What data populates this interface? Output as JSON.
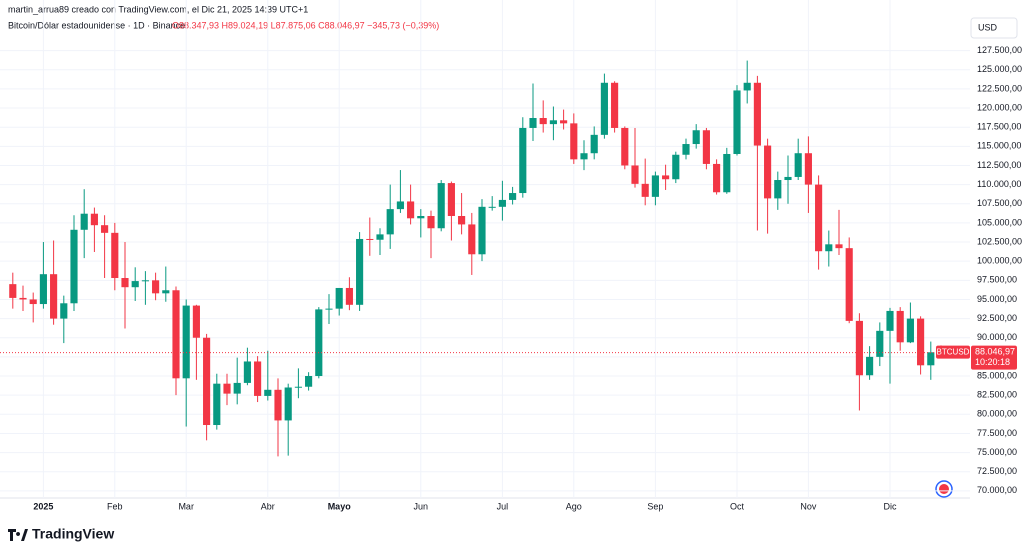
{
  "header": {
    "credit": "martin_arrua89 creado con TradingView.com, el Dic 21, 2025 14:39 UTC+1",
    "unit": "USD",
    "logo": "TradingView"
  },
  "chart_data": {
    "type": "candlestick",
    "title": "Bitcoin/Dólar estadounidense · 1D · Binance",
    "legend_ohlc": "O88.347,93 H89.024,19 L87.875,06 C88.046,97 −345,73 (−0,39%)",
    "categories": [
      null,
      null,
      null,
      "2025",
      null,
      null,
      null,
      null,
      null,
      null,
      "Feb",
      null,
      null,
      null,
      null,
      null,
      null,
      "Mar",
      null,
      null,
      null,
      null,
      null,
      null,
      null,
      "Abr",
      null,
      null,
      null,
      null,
      null,
      null,
      "Mayo",
      null,
      null,
      null,
      null,
      null,
      null,
      null,
      "Jun",
      null,
      null,
      null,
      null,
      null,
      null,
      null,
      "Jul",
      null,
      null,
      null,
      null,
      null,
      null,
      "Ago",
      null,
      null,
      null,
      null,
      null,
      null,
      null,
      "Sep",
      null,
      null,
      null,
      null,
      null,
      null,
      null,
      "Oct",
      null,
      null,
      null,
      null,
      null,
      null,
      "Nov",
      null,
      null,
      null,
      null,
      null,
      null,
      null,
      "Dic",
      null,
      null,
      null,
      null,
      null
    ],
    "open": [
      97000,
      95200,
      95000,
      94400,
      98300,
      92500,
      94500,
      104100,
      106200,
      104700,
      103700,
      97800,
      96600,
      97400,
      97500,
      95800,
      96200,
      84700,
      94200,
      90000,
      78600,
      84000,
      82700,
      84100,
      86900,
      82400,
      83200,
      79200,
      83500,
      83600,
      85000,
      93700,
      93800,
      96500,
      94300,
      102900,
      102800,
      103500,
      106800,
      107800,
      105600,
      105900,
      104300,
      110200,
      105900,
      104800,
      100900,
      107100,
      107100,
      108000,
      108900,
      117400,
      118700,
      117900,
      118400,
      118000,
      113300,
      114100,
      116500,
      123300,
      117400,
      112500,
      110100,
      108400,
      111200,
      110700,
      113900,
      115300,
      117100,
      112700,
      109000,
      114000,
      122300,
      123300,
      115100,
      108200,
      110600,
      111000,
      114100,
      110000,
      101300,
      102200,
      101700,
      92200,
      85100,
      87500,
      90900,
      93500,
      89400,
      92500,
      86400,
      88100
    ],
    "high": [
      98500,
      96800,
      95900,
      102500,
      102700,
      95500,
      106000,
      109400,
      107000,
      106000,
      105000,
      102500,
      99200,
      98700,
      98500,
      99300,
      96700,
      95000,
      94300,
      90500,
      85300,
      85300,
      87400,
      88700,
      87600,
      88300,
      84700,
      84000,
      86000,
      85500,
      94000,
      95700,
      96500,
      97900,
      103800,
      105700,
      104300,
      110000,
      111900,
      110000,
      106800,
      106600,
      110600,
      110400,
      108900,
      106300,
      108100,
      108500,
      110500,
      109700,
      118800,
      123200,
      121000,
      120200,
      119800,
      119300,
      115800,
      117600,
      124500,
      123500,
      117600,
      117400,
      113400,
      111700,
      112600,
      114300,
      116000,
      117900,
      117400,
      113300,
      114800,
      123000,
      126200,
      124200,
      116000,
      111700,
      113800,
      116000,
      116300,
      111200,
      104000,
      106700,
      103100,
      93200,
      88900,
      92000,
      93900,
      94000,
      94600,
      92800,
      89500,
      89000
    ],
    "low": [
      93800,
      93500,
      92000,
      93800,
      91700,
      89300,
      93500,
      100400,
      101200,
      97800,
      96200,
      91200,
      94800,
      94300,
      94900,
      94700,
      82500,
      78400,
      84500,
      76600,
      78000,
      81200,
      81300,
      83800,
      81600,
      81800,
      74500,
      74600,
      82100,
      83100,
      84700,
      91800,
      92900,
      93600,
      93500,
      100700,
      100800,
      101600,
      106300,
      104800,
      103100,
      100400,
      103900,
      102700,
      103500,
      98200,
      100000,
      106600,
      105300,
      107400,
      108300,
      115700,
      116800,
      115800,
      117200,
      112700,
      111900,
      113300,
      116000,
      116800,
      112000,
      109600,
      107300,
      107300,
      109300,
      110200,
      113300,
      114700,
      112000,
      108700,
      108800,
      113800,
      120600,
      104000,
      103600,
      106700,
      107500,
      110600,
      106300,
      98900,
      99300,
      100800,
      91900,
      80500,
      84500,
      86300,
      84000,
      88300,
      89300,
      85200,
      84500,
      87500
    ],
    "close": [
      95200,
      95000,
      94400,
      98300,
      92500,
      94500,
      104100,
      106200,
      104700,
      103700,
      97800,
      96600,
      97400,
      97500,
      95800,
      96200,
      84700,
      94200,
      90000,
      78600,
      84000,
      82700,
      84100,
      86900,
      82400,
      83200,
      79200,
      83500,
      83600,
      85000,
      93700,
      93800,
      96500,
      94300,
      102900,
      102800,
      103500,
      106800,
      107800,
      105600,
      105900,
      104300,
      110200,
      105900,
      104800,
      100900,
      107100,
      107100,
      108000,
      108900,
      117400,
      118700,
      117900,
      118400,
      118000,
      113300,
      114100,
      116500,
      123300,
      117400,
      112500,
      110100,
      108400,
      111200,
      110700,
      113900,
      115300,
      117100,
      112700,
      109000,
      114000,
      122300,
      123300,
      115100,
      108200,
      110600,
      111000,
      114100,
      110000,
      101300,
      102200,
      101700,
      92200,
      85100,
      87500,
      90900,
      93500,
      89400,
      92500,
      86400,
      88100,
      88000
    ],
    "up_color": "#089981",
    "down_color": "#f23645",
    "ylim": [
      67500,
      131500
    ],
    "yticks": [
      {
        "value": 70000,
        "label": "70.000,00"
      },
      {
        "value": 72500,
        "label": "72.500,00"
      },
      {
        "value": 75000,
        "label": "75.000,00"
      },
      {
        "value": 77500,
        "label": "77.500,00"
      },
      {
        "value": 80000,
        "label": "80.000,00"
      },
      {
        "value": 82500,
        "label": "82.500,00"
      },
      {
        "value": 85000,
        "label": "85.000,00"
      },
      {
        "value": 87500,
        "label": "87.500,00"
      },
      {
        "value": 90000,
        "label": "90.000,00"
      },
      {
        "value": 92500,
        "label": "92.500,00"
      },
      {
        "value": 95000,
        "label": "95.000,00"
      },
      {
        "value": 97500,
        "label": "97.500,00"
      },
      {
        "value": 100000,
        "label": "100.000,00"
      },
      {
        "value": 102500,
        "label": "102.500,00"
      },
      {
        "value": 105000,
        "label": "105.000,00"
      },
      {
        "value": 107500,
        "label": "107.500,00"
      },
      {
        "value": 110000,
        "label": "110.000,00"
      },
      {
        "value": 112500,
        "label": "112.500,00"
      },
      {
        "value": 115000,
        "label": "115.000,00"
      },
      {
        "value": 117500,
        "label": "117.500,00"
      },
      {
        "value": 120000,
        "label": "120.000,00"
      },
      {
        "value": 122500,
        "label": "122.500,00"
      },
      {
        "value": 125000,
        "label": "125.000,00"
      },
      {
        "value": 127500,
        "label": "127.500,00"
      }
    ],
    "grid": true,
    "last_price": {
      "value": 88046.97,
      "label": "88.046,97",
      "symbol": "BTCUSD",
      "countdown": "10:20:18"
    }
  }
}
